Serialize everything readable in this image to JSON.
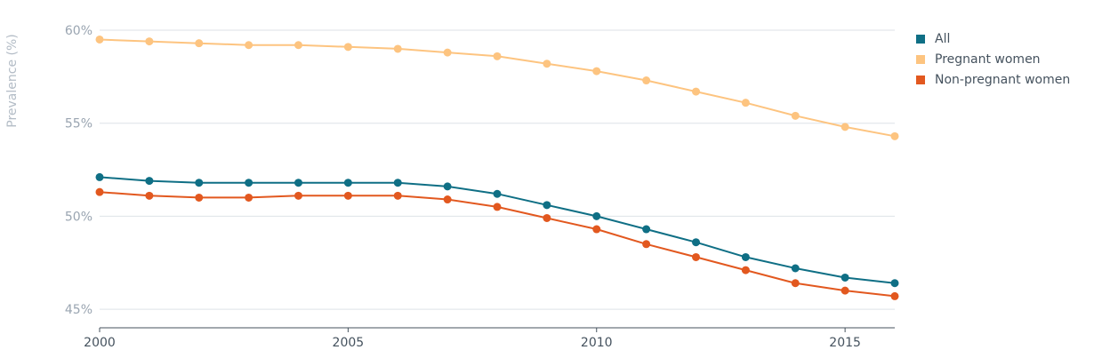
{
  "chart_data": {
    "type": "line",
    "ylabel": "Prevalence (%)",
    "x": [
      2000,
      2001,
      2002,
      2003,
      2004,
      2005,
      2006,
      2007,
      2008,
      2009,
      2010,
      2011,
      2012,
      2013,
      2014,
      2015,
      2016
    ],
    "xlim": [
      2000,
      2016
    ],
    "ylim": [
      44,
      60
    ],
    "x_ticks": [
      2000,
      2005,
      2010,
      2015
    ],
    "x_tick_labels": [
      "2000",
      "2005",
      "2010",
      "2015"
    ],
    "y_ticks": [
      45,
      50,
      55,
      60
    ],
    "y_tick_labels": [
      "45%",
      "50%",
      "55%",
      "60%"
    ],
    "grid": true,
    "legend_position": "top-right",
    "series": [
      {
        "name": "All",
        "color": "#0f6f85",
        "values": [
          52.1,
          51.9,
          51.8,
          51.8,
          51.8,
          51.8,
          51.8,
          51.6,
          51.2,
          50.6,
          50.0,
          49.3,
          48.6,
          47.8,
          47.2,
          46.7,
          46.4
        ]
      },
      {
        "name": "Pregnant women",
        "color": "#fdc480",
        "values": [
          59.5,
          59.4,
          59.3,
          59.2,
          59.2,
          59.1,
          59.0,
          58.8,
          58.6,
          58.2,
          57.8,
          57.3,
          56.7,
          56.1,
          55.4,
          54.8,
          54.3
        ]
      },
      {
        "name": "Non-pregnant women",
        "color": "#e2581f",
        "values": [
          51.3,
          51.1,
          51.0,
          51.0,
          51.1,
          51.1,
          51.1,
          50.9,
          50.5,
          49.9,
          49.3,
          48.5,
          47.8,
          47.1,
          46.4,
          46.0,
          45.7
        ]
      }
    ]
  }
}
